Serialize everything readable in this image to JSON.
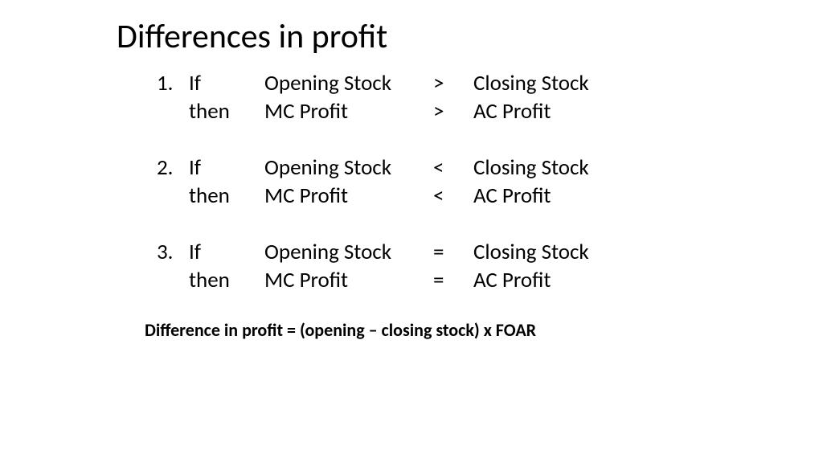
{
  "title": "Differences in profit",
  "rules": [
    {
      "num": "1.",
      "if": "If",
      "term1_a": "Opening Stock",
      "op_a": ">",
      "term2_a": "Closing Stock",
      "then": "then",
      "term1_b": "MC Profit",
      "op_b": ">",
      "term2_b": "AC Profit"
    },
    {
      "num": "2.",
      "if": "If",
      "term1_a": "Opening Stock",
      "op_a": "<",
      "term2_a": "Closing Stock",
      "then": "then",
      "term1_b": "MC Profit",
      "op_b": "<",
      "term2_b": "AC Profit"
    },
    {
      "num": "3.",
      "if": "If",
      "term1_a": "Opening Stock",
      "op_a": "=",
      "term2_a": "Closing Stock",
      "then": "then",
      "term1_b": "MC Profit",
      "op_b": "=",
      "term2_b": "AC Profit"
    }
  ],
  "formula": "Difference in profit = (opening – closing stock) x FOAR",
  "colors": {
    "background": "#ffffff",
    "text": "#000000"
  },
  "fonts": {
    "title_size": 42,
    "body_size": 27,
    "formula_size": 22
  }
}
